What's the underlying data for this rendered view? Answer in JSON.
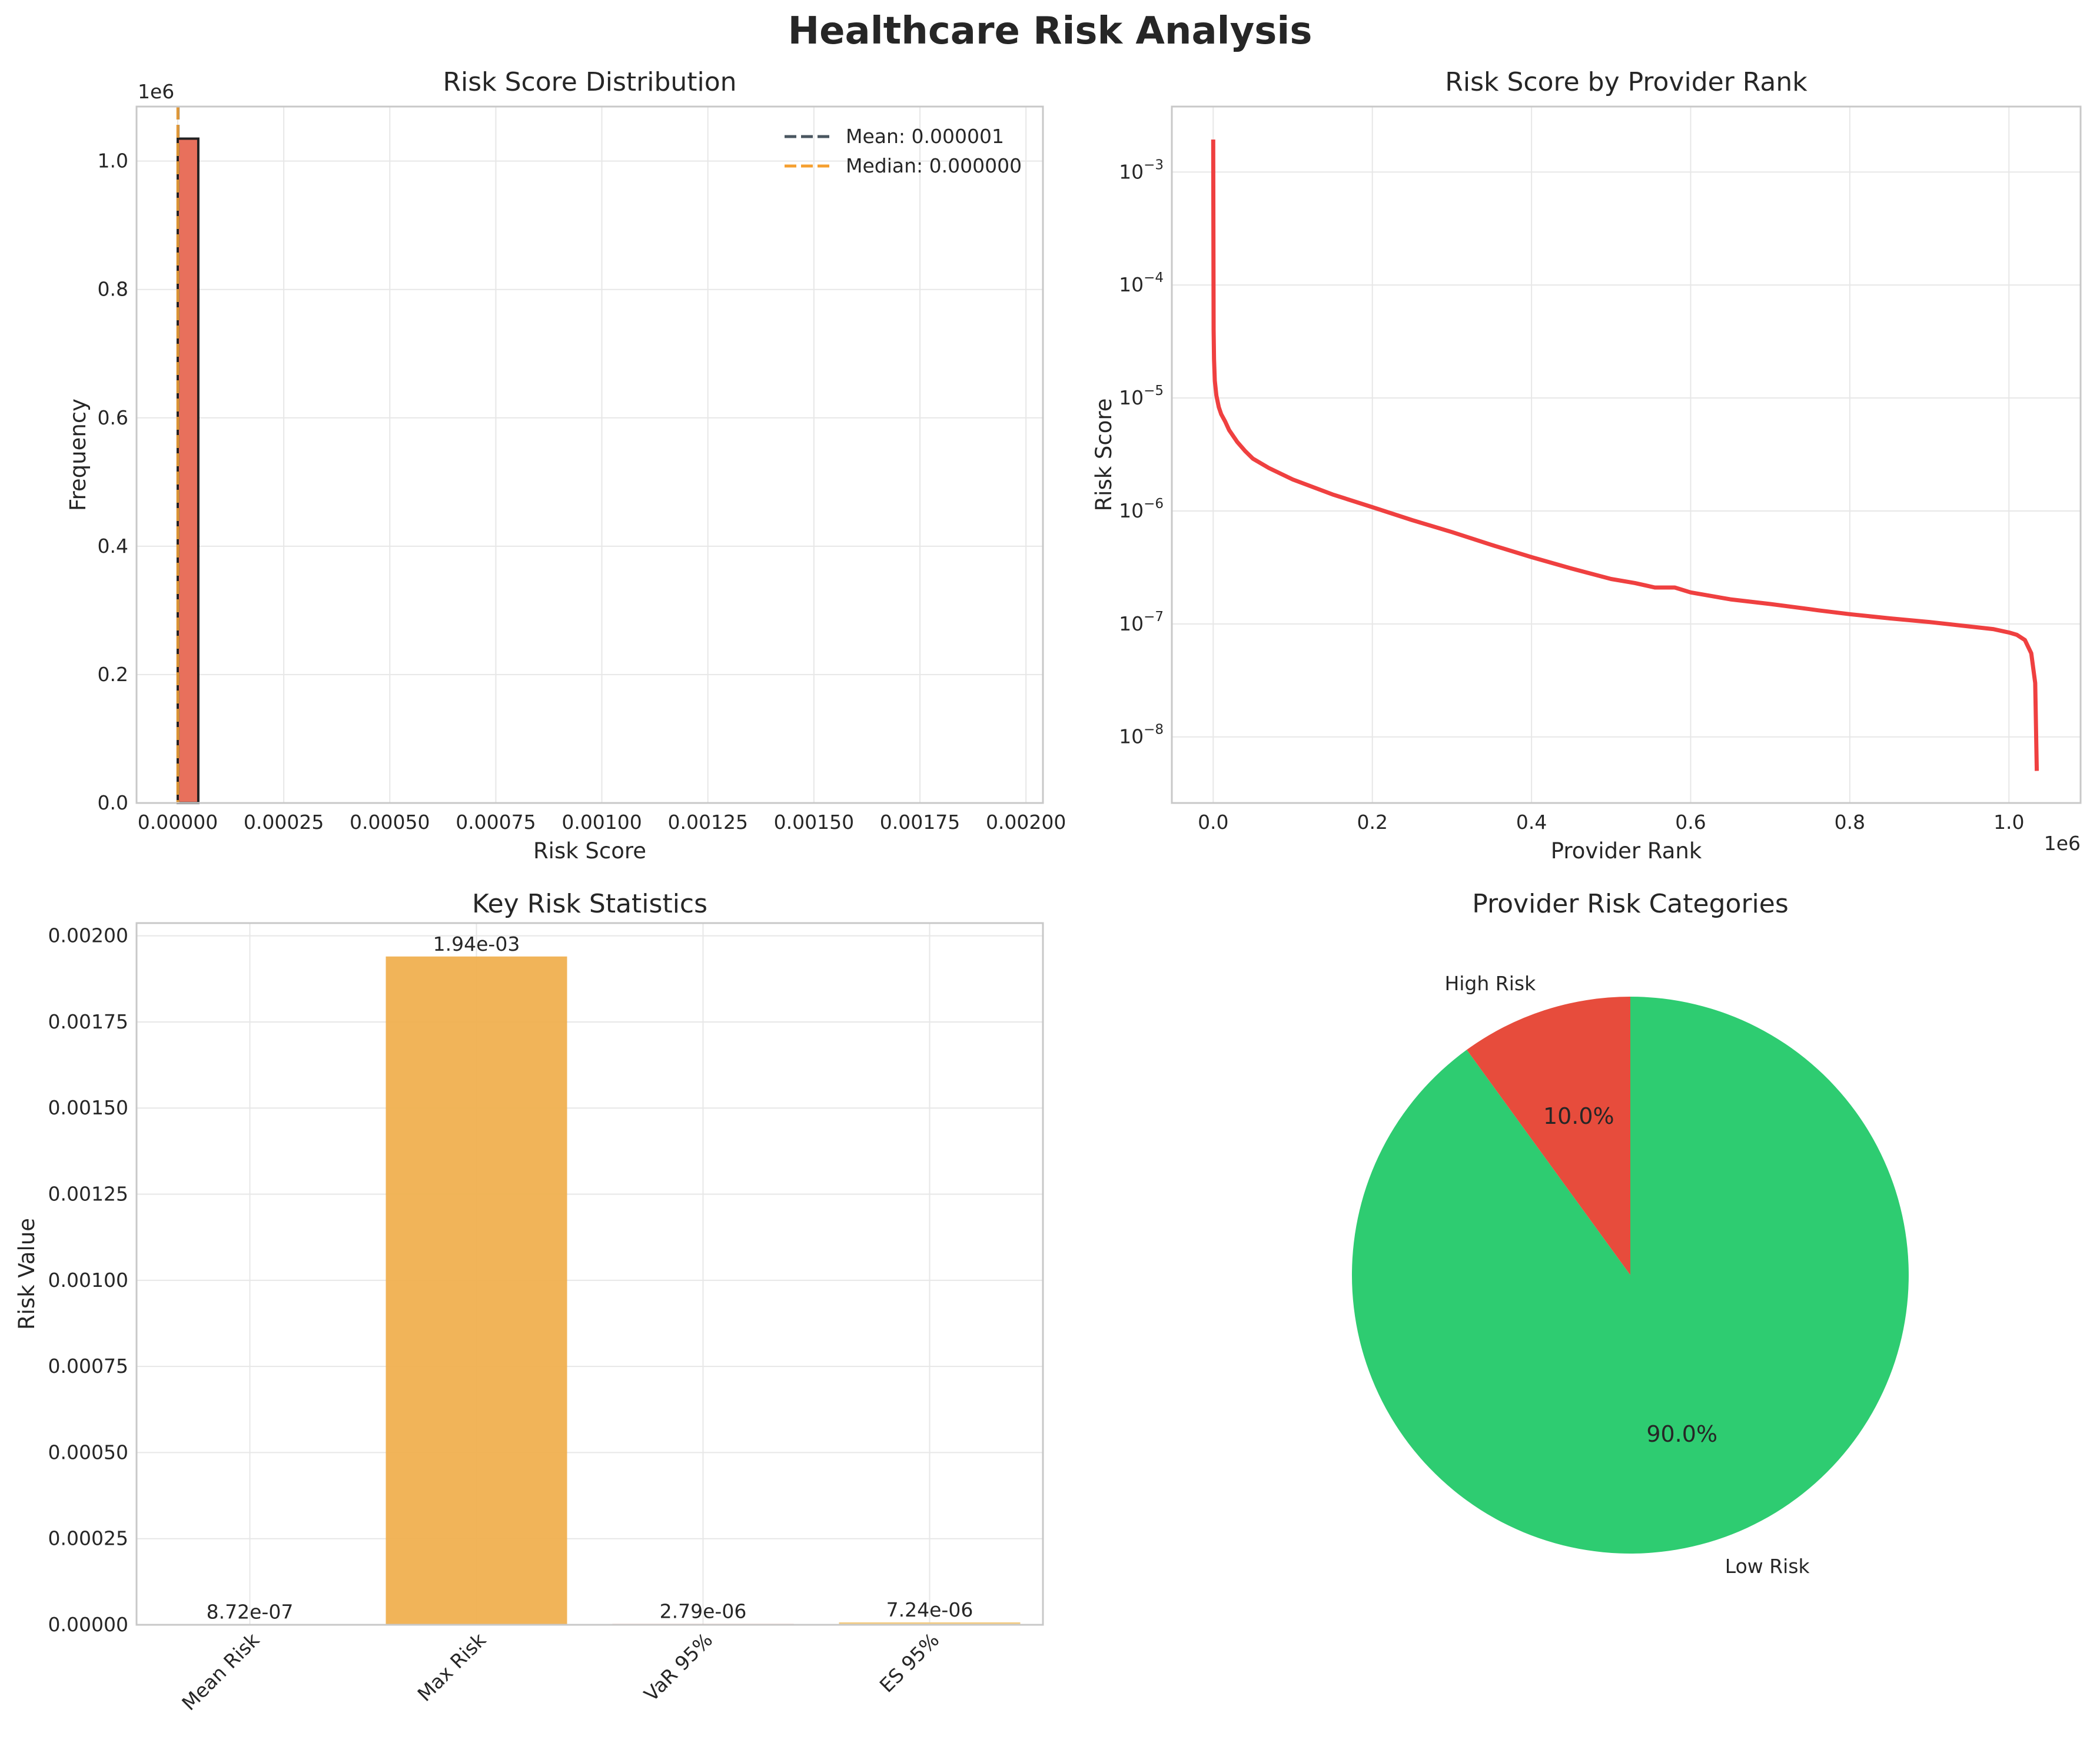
{
  "figure": {
    "title": "Healthcare Risk Analysis"
  },
  "chart_data": [
    {
      "type": "bar",
      "subtype": "histogram",
      "title": "Risk Score Distribution",
      "xlabel": "Risk Score",
      "ylabel": "Frequency",
      "y_offset_label": "1e6",
      "xlim": [
        -9.71e-05,
        0.00204
      ],
      "ylim": [
        0,
        1.085
      ],
      "xticks": [
        0,
        0.00025,
        0.0005,
        0.00075,
        0.001,
        0.00125,
        0.0015,
        0.00175,
        0.002
      ],
      "xtick_labels": [
        "0.00000",
        "0.00025",
        "0.00050",
        "0.00075",
        "0.00100",
        "0.00125",
        "0.00150",
        "0.00175",
        "0.00200"
      ],
      "yticks": [
        0,
        0.2,
        0.4,
        0.6,
        0.8,
        1.0
      ],
      "ytick_labels": [
        "0.0",
        "0.2",
        "0.4",
        "0.6",
        "0.8",
        "1.0"
      ],
      "bins": [
        {
          "x0": 0.0,
          "x1": 4.85e-05,
          "value": 1.035
        }
      ],
      "bar_color": "#e8705c",
      "lines": [
        {
          "name": "Mean: 0.000001",
          "x": 8.72e-07,
          "color": "#4a5660",
          "dash": "dashed"
        },
        {
          "name": "Median: 0.000000",
          "x": 3e-07,
          "color": "#f5a030",
          "dash": "dashed"
        }
      ],
      "legend": {
        "position": "top-right",
        "entries": [
          "Mean: 0.000001",
          "Median: 0.000000"
        ]
      },
      "grid": true
    },
    {
      "type": "line",
      "title": "Risk Score by Provider Rank",
      "xlabel": "Provider Rank",
      "ylabel": "Risk Score",
      "x_offset_label": "1e6",
      "yscale": "log",
      "xlim": [
        -0.052,
        1.09
      ],
      "ylim": [
        2.6e-09,
        0.0038
      ],
      "xticks": [
        0,
        0.2,
        0.4,
        0.6,
        0.8,
        1.0
      ],
      "xtick_labels": [
        "0.0",
        "0.2",
        "0.4",
        "0.6",
        "0.8",
        "1.0"
      ],
      "yticks": [
        1e-08,
        1e-07,
        1e-06,
        1e-05,
        0.0001,
        0.001
      ],
      "ytick_labels": [
        {
          "base": "10",
          "exp": "−8"
        },
        {
          "base": "10",
          "exp": "−7"
        },
        {
          "base": "10",
          "exp": "−6"
        },
        {
          "base": "10",
          "exp": "−5"
        },
        {
          "base": "10",
          "exp": "−4"
        },
        {
          "base": "10",
          "exp": "−3"
        }
      ],
      "series": [
        {
          "color": "#ef4040",
          "x": [
            0,
            0.0005,
            0.001,
            0.002,
            0.004,
            0.007,
            0.01,
            0.015,
            0.02,
            0.03,
            0.04,
            0.05,
            0.07,
            0.1,
            0.15,
            0.2,
            0.25,
            0.3,
            0.35,
            0.4,
            0.45,
            0.5,
            0.53,
            0.555,
            0.58,
            0.6,
            0.65,
            0.7,
            0.75,
            0.76,
            0.8,
            0.85,
            0.9,
            0.95,
            0.98,
            1.0,
            1.01,
            1.02,
            1.028,
            1.033,
            1.035
          ],
          "y": [
            0.00194,
            4e-05,
            2.2e-05,
            1.42e-05,
            1.05e-05,
            8.3e-06,
            7.2e-06,
            6.2e-06,
            5.2e-06,
            4.1e-06,
            3.4e-06,
            2.9e-06,
            2.4e-06,
            1.9e-06,
            1.4e-06,
            1.08e-06,
            8.3e-07,
            6.5e-07,
            5e-07,
            3.9e-07,
            3.1e-07,
            2.5e-07,
            2.3e-07,
            2.1e-07,
            2.1e-07,
            1.9e-07,
            1.65e-07,
            1.5e-07,
            1.35e-07,
            1.32e-07,
            1.22e-07,
            1.12e-07,
            1.04e-07,
            9.5e-08,
            9e-08,
            8.4e-08,
            8e-08,
            7.2e-08,
            5.5e-08,
            3e-08,
            5e-09
          ]
        }
      ],
      "grid": true
    },
    {
      "type": "bar",
      "title": "Key Risk Statistics",
      "xlabel": "",
      "ylabel": "Risk Value",
      "categories": [
        "Mean Risk",
        "Max Risk",
        "VaR 95%",
        "ES 95%"
      ],
      "values": [
        8.72e-07,
        0.00194,
        2.79e-06,
        7.24e-06
      ],
      "value_labels": [
        "8.72e-07",
        "1.94e-03",
        "2.79e-06",
        "7.24e-06"
      ],
      "colors": [
        "#2f93d8",
        "#f0b050",
        "#ee8070",
        "#f2ca7e"
      ],
      "ylim": [
        0,
        0.002037
      ],
      "yticks": [
        0,
        0.00025,
        0.0005,
        0.00075,
        0.001,
        0.00125,
        0.0015,
        0.00175,
        0.002
      ],
      "ytick_labels": [
        "0.00000",
        "0.00025",
        "0.00050",
        "0.00075",
        "0.00100",
        "0.00125",
        "0.00150",
        "0.00175",
        "0.00200"
      ],
      "grid": true
    },
    {
      "type": "pie",
      "title": "Provider Risk Categories",
      "labels": [
        "High Risk",
        "Low Risk"
      ],
      "values": [
        10.0,
        90.0
      ],
      "pct_labels": [
        "10.0%",
        "90.0%"
      ],
      "colors": [
        "#e74c3c",
        "#2ecc71"
      ],
      "start_angle": 90
    }
  ]
}
